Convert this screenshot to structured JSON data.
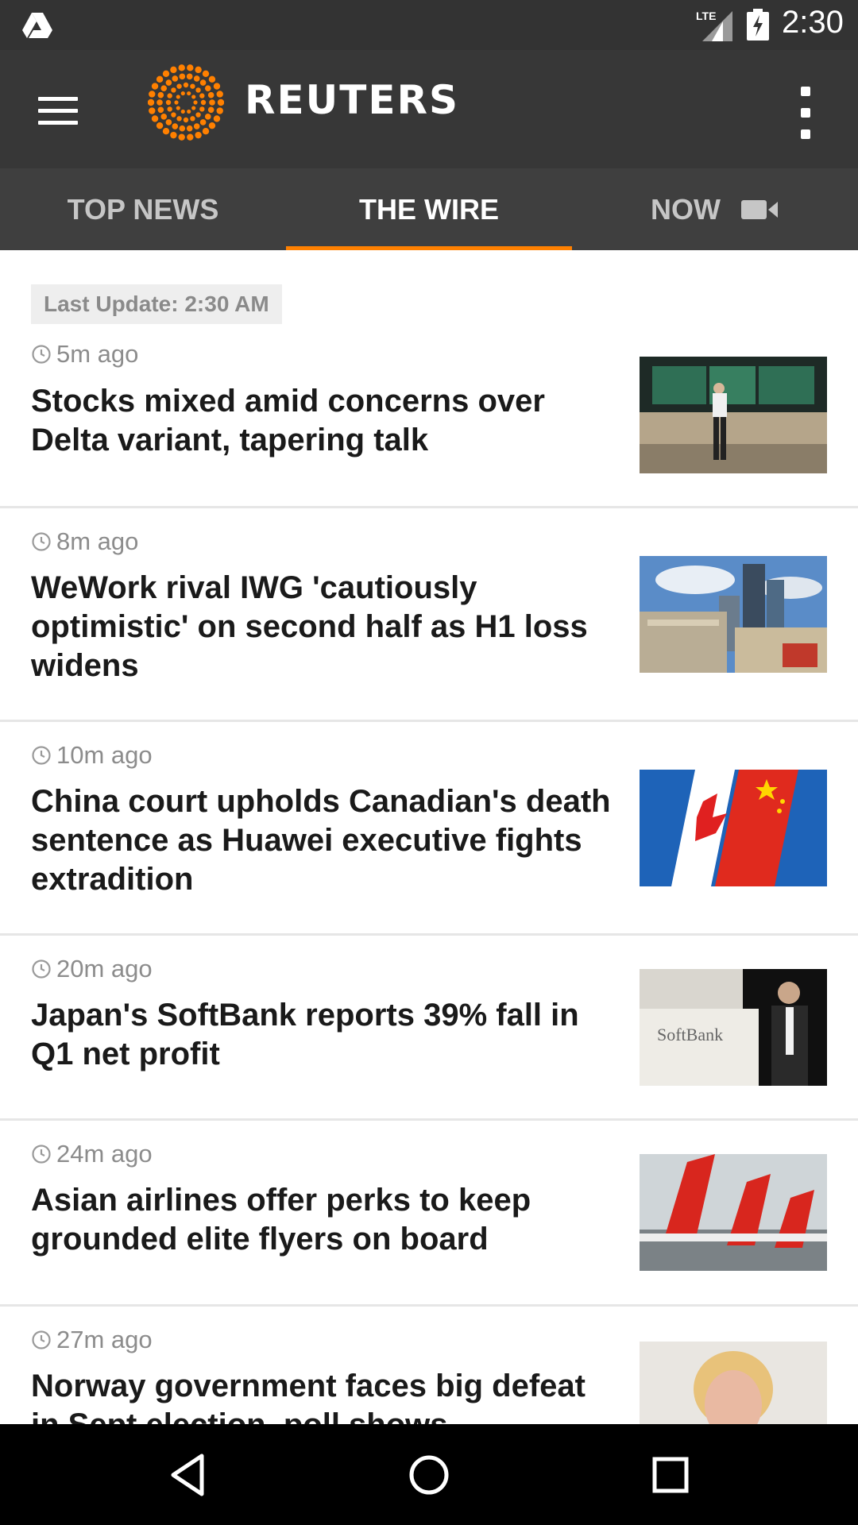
{
  "status_bar": {
    "network": "LTE",
    "time": "2:30",
    "icons": [
      "drive-icon",
      "signal-icon",
      "battery-charging-icon"
    ]
  },
  "app_bar": {
    "brand": "REUTERS",
    "icons": [
      "menu-icon",
      "reuters-logo-icon",
      "more-options-icon"
    ]
  },
  "tabs": [
    {
      "label": "TOP NEWS",
      "active": false
    },
    {
      "label": "THE WIRE",
      "active": true
    },
    {
      "label": "NOW",
      "active": false,
      "icon": "video-camera-icon"
    }
  ],
  "feed": {
    "last_update": "Last Update: 2:30 AM",
    "articles": [
      {
        "time": "5m ago",
        "headline": "Stocks mixed amid concerns over Delta variant, tapering talk",
        "thumbnail": "stock-board-photo"
      },
      {
        "time": "8m ago",
        "headline": "WeWork rival IWG 'cautiously optimistic' on second half as H1 loss widens",
        "thumbnail": "london-city-photo"
      },
      {
        "time": "10m ago",
        "headline": "China court upholds Canadian's death sentence as Huawei executive fights extradition",
        "thumbnail": "canada-china-flags-photo"
      },
      {
        "time": "20m ago",
        "headline": "Japan's SoftBank reports 39% fall in Q1 net profit",
        "thumbnail": "softbank-speaker-photo",
        "thumbnail_text": "SoftBank"
      },
      {
        "time": "24m ago",
        "headline": "Asian airlines offer perks to keep grounded elite flyers on board",
        "thumbnail": "qantas-planes-photo"
      },
      {
        "time": "27m ago",
        "headline": "Norway government faces big defeat in Sept election, poll shows",
        "thumbnail": "norway-pm-photo"
      }
    ]
  },
  "colors": {
    "status_bar": "#333333",
    "app_bar": "#373737",
    "tab_bar": "#3f3f3f",
    "accent": "#ff8000"
  },
  "nav_bar": {
    "icons": [
      "back-icon",
      "home-icon",
      "recents-icon"
    ]
  }
}
